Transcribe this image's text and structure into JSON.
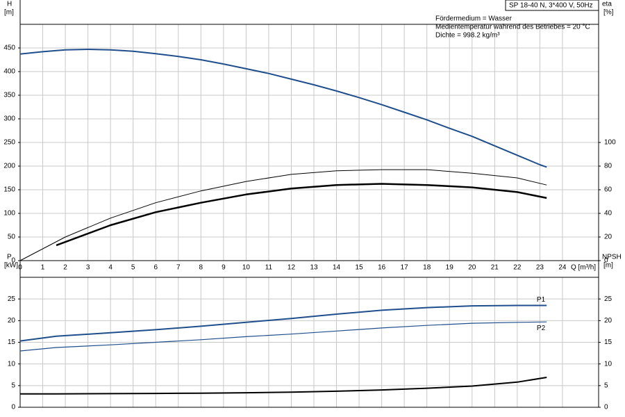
{
  "chart_data": [
    {
      "type": "line",
      "y_label": "H",
      "y_unit": "[m]",
      "y2_label": "eta",
      "y2_unit": "[%]",
      "x_label": "Q [m³/h]",
      "annotations": [
        "SP 18-40 N, 3*400 V, 50Hz",
        "Fördermedium = Wasser",
        "Medientemperatur während des Betriebes = 20 °C",
        "Dichte = 998.2 kg/m³"
      ],
      "xlim": [
        0,
        25.6
      ],
      "xticks": [
        0,
        1,
        2,
        3,
        4,
        5,
        6,
        7,
        8,
        9,
        10,
        11,
        12,
        13,
        14,
        15,
        16,
        17,
        18,
        19,
        20,
        21,
        22,
        23,
        24
      ],
      "ylim": [
        0,
        500
      ],
      "yticks": [
        0,
        50,
        100,
        150,
        200,
        250,
        300,
        350,
        400,
        450
      ],
      "y2lim": [
        0,
        200
      ],
      "y2ticks": [
        0,
        20,
        40,
        60,
        80,
        100
      ],
      "grid": true,
      "series": [
        {
          "color": "#1f4e8c",
          "line_width": 2,
          "axis": "y",
          "x": [
            0,
            1,
            2,
            3,
            4,
            5,
            6,
            7,
            8,
            9,
            10,
            11,
            12,
            13,
            14,
            15,
            16,
            17,
            18,
            19,
            20,
            21,
            22,
            23,
            23.3
          ],
          "values": [
            437,
            442,
            446,
            447,
            446,
            443,
            438,
            432,
            425,
            416,
            406,
            396,
            384,
            372,
            359,
            345,
            330,
            314,
            298,
            280,
            263,
            243,
            223,
            203,
            198
          ]
        },
        {
          "color": "#000000",
          "line_width": 1,
          "axis": "y2",
          "x": [
            0,
            2,
            4,
            6,
            8,
            10,
            12,
            14,
            16,
            18,
            20,
            22,
            23.3
          ],
          "values": [
            0,
            20,
            36,
            49,
            59,
            67,
            73,
            76,
            77,
            77,
            74,
            70,
            64
          ]
        },
        {
          "color": "#000000",
          "line_width": 2.5,
          "axis": "y2",
          "x": [
            1.6,
            4,
            6,
            8,
            10,
            12,
            14,
            16,
            18,
            20,
            22,
            23.3
          ],
          "values": [
            13,
            30,
            41,
            49,
            56,
            61,
            64,
            65,
            64,
            62,
            58,
            53
          ]
        }
      ]
    },
    {
      "type": "line",
      "y_label": "P",
      "y_unit": "[kW]",
      "y2_label": "NPSH",
      "y2_unit": "[m]",
      "xlim": [
        0,
        25.6
      ],
      "ylim": [
        0,
        30
      ],
      "yticks": [
        0,
        5,
        10,
        15,
        20,
        25
      ],
      "y2lim": [
        0,
        30
      ],
      "y2ticks": [
        0,
        5,
        10,
        15,
        20,
        25
      ],
      "grid": true,
      "series": [
        {
          "name": "P1",
          "color": "#1f4e8c",
          "line_width": 2,
          "axis": "y",
          "x": [
            0,
            1.6,
            4,
            6,
            8,
            10,
            12,
            14,
            16,
            18,
            20,
            22,
            23.3
          ],
          "values": [
            15.3,
            16.4,
            17.2,
            17.9,
            18.7,
            19.6,
            20.5,
            21.5,
            22.4,
            23,
            23.4,
            23.5,
            23.5
          ]
        },
        {
          "name": "P2",
          "color": "#1f4e8c",
          "line_width": 1.2,
          "axis": "y",
          "x": [
            0,
            1.6,
            4,
            6,
            8,
            10,
            12,
            14,
            16,
            18,
            20,
            22,
            23.3
          ],
          "values": [
            13,
            13.8,
            14.4,
            15,
            15.6,
            16.3,
            16.9,
            17.6,
            18.3,
            18.9,
            19.4,
            19.6,
            19.7
          ]
        },
        {
          "color": "#000000",
          "line_width": 2,
          "axis": "y2",
          "x": [
            0,
            1.6,
            4,
            6,
            8,
            10,
            12,
            14,
            16,
            18,
            20,
            22,
            23.3
          ],
          "values": [
            3.1,
            3.1,
            3.15,
            3.2,
            3.25,
            3.35,
            3.5,
            3.7,
            4,
            4.4,
            4.9,
            5.8,
            6.9
          ]
        }
      ]
    }
  ]
}
